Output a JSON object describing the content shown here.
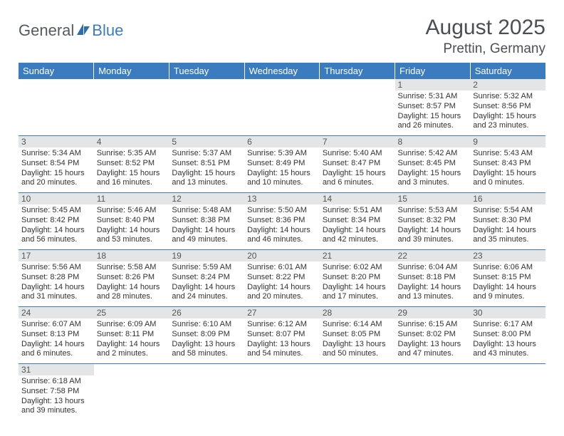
{
  "logo": {
    "text1": "General",
    "text2": "Blue"
  },
  "title": "August 2025",
  "location": "Prettin, Germany",
  "colors": {
    "header_bg": "#3b7bbf",
    "header_text": "#ffffff",
    "daynum_bg": "#e3e5e7",
    "cell_border": "#3b7bbf",
    "text": "#333333"
  },
  "day_headers": [
    "Sunday",
    "Monday",
    "Tuesday",
    "Wednesday",
    "Thursday",
    "Friday",
    "Saturday"
  ],
  "weeks": [
    [
      null,
      null,
      null,
      null,
      null,
      {
        "n": "1",
        "sr": "Sunrise: 5:31 AM",
        "ss": "Sunset: 8:57 PM",
        "d1": "Daylight: 15 hours",
        "d2": "and 26 minutes."
      },
      {
        "n": "2",
        "sr": "Sunrise: 5:32 AM",
        "ss": "Sunset: 8:56 PM",
        "d1": "Daylight: 15 hours",
        "d2": "and 23 minutes."
      }
    ],
    [
      {
        "n": "3",
        "sr": "Sunrise: 5:34 AM",
        "ss": "Sunset: 8:54 PM",
        "d1": "Daylight: 15 hours",
        "d2": "and 20 minutes."
      },
      {
        "n": "4",
        "sr": "Sunrise: 5:35 AM",
        "ss": "Sunset: 8:52 PM",
        "d1": "Daylight: 15 hours",
        "d2": "and 16 minutes."
      },
      {
        "n": "5",
        "sr": "Sunrise: 5:37 AM",
        "ss": "Sunset: 8:51 PM",
        "d1": "Daylight: 15 hours",
        "d2": "and 13 minutes."
      },
      {
        "n": "6",
        "sr": "Sunrise: 5:39 AM",
        "ss": "Sunset: 8:49 PM",
        "d1": "Daylight: 15 hours",
        "d2": "and 10 minutes."
      },
      {
        "n": "7",
        "sr": "Sunrise: 5:40 AM",
        "ss": "Sunset: 8:47 PM",
        "d1": "Daylight: 15 hours",
        "d2": "and 6 minutes."
      },
      {
        "n": "8",
        "sr": "Sunrise: 5:42 AM",
        "ss": "Sunset: 8:45 PM",
        "d1": "Daylight: 15 hours",
        "d2": "and 3 minutes."
      },
      {
        "n": "9",
        "sr": "Sunrise: 5:43 AM",
        "ss": "Sunset: 8:43 PM",
        "d1": "Daylight: 15 hours",
        "d2": "and 0 minutes."
      }
    ],
    [
      {
        "n": "10",
        "sr": "Sunrise: 5:45 AM",
        "ss": "Sunset: 8:42 PM",
        "d1": "Daylight: 14 hours",
        "d2": "and 56 minutes."
      },
      {
        "n": "11",
        "sr": "Sunrise: 5:46 AM",
        "ss": "Sunset: 8:40 PM",
        "d1": "Daylight: 14 hours",
        "d2": "and 53 minutes."
      },
      {
        "n": "12",
        "sr": "Sunrise: 5:48 AM",
        "ss": "Sunset: 8:38 PM",
        "d1": "Daylight: 14 hours",
        "d2": "and 49 minutes."
      },
      {
        "n": "13",
        "sr": "Sunrise: 5:50 AM",
        "ss": "Sunset: 8:36 PM",
        "d1": "Daylight: 14 hours",
        "d2": "and 46 minutes."
      },
      {
        "n": "14",
        "sr": "Sunrise: 5:51 AM",
        "ss": "Sunset: 8:34 PM",
        "d1": "Daylight: 14 hours",
        "d2": "and 42 minutes."
      },
      {
        "n": "15",
        "sr": "Sunrise: 5:53 AM",
        "ss": "Sunset: 8:32 PM",
        "d1": "Daylight: 14 hours",
        "d2": "and 39 minutes."
      },
      {
        "n": "16",
        "sr": "Sunrise: 5:54 AM",
        "ss": "Sunset: 8:30 PM",
        "d1": "Daylight: 14 hours",
        "d2": "and 35 minutes."
      }
    ],
    [
      {
        "n": "17",
        "sr": "Sunrise: 5:56 AM",
        "ss": "Sunset: 8:28 PM",
        "d1": "Daylight: 14 hours",
        "d2": "and 31 minutes."
      },
      {
        "n": "18",
        "sr": "Sunrise: 5:58 AM",
        "ss": "Sunset: 8:26 PM",
        "d1": "Daylight: 14 hours",
        "d2": "and 28 minutes."
      },
      {
        "n": "19",
        "sr": "Sunrise: 5:59 AM",
        "ss": "Sunset: 8:24 PM",
        "d1": "Daylight: 14 hours",
        "d2": "and 24 minutes."
      },
      {
        "n": "20",
        "sr": "Sunrise: 6:01 AM",
        "ss": "Sunset: 8:22 PM",
        "d1": "Daylight: 14 hours",
        "d2": "and 20 minutes."
      },
      {
        "n": "21",
        "sr": "Sunrise: 6:02 AM",
        "ss": "Sunset: 8:20 PM",
        "d1": "Daylight: 14 hours",
        "d2": "and 17 minutes."
      },
      {
        "n": "22",
        "sr": "Sunrise: 6:04 AM",
        "ss": "Sunset: 8:18 PM",
        "d1": "Daylight: 14 hours",
        "d2": "and 13 minutes."
      },
      {
        "n": "23",
        "sr": "Sunrise: 6:06 AM",
        "ss": "Sunset: 8:15 PM",
        "d1": "Daylight: 14 hours",
        "d2": "and 9 minutes."
      }
    ],
    [
      {
        "n": "24",
        "sr": "Sunrise: 6:07 AM",
        "ss": "Sunset: 8:13 PM",
        "d1": "Daylight: 14 hours",
        "d2": "and 6 minutes."
      },
      {
        "n": "25",
        "sr": "Sunrise: 6:09 AM",
        "ss": "Sunset: 8:11 PM",
        "d1": "Daylight: 14 hours",
        "d2": "and 2 minutes."
      },
      {
        "n": "26",
        "sr": "Sunrise: 6:10 AM",
        "ss": "Sunset: 8:09 PM",
        "d1": "Daylight: 13 hours",
        "d2": "and 58 minutes."
      },
      {
        "n": "27",
        "sr": "Sunrise: 6:12 AM",
        "ss": "Sunset: 8:07 PM",
        "d1": "Daylight: 13 hours",
        "d2": "and 54 minutes."
      },
      {
        "n": "28",
        "sr": "Sunrise: 6:14 AM",
        "ss": "Sunset: 8:05 PM",
        "d1": "Daylight: 13 hours",
        "d2": "and 50 minutes."
      },
      {
        "n": "29",
        "sr": "Sunrise: 6:15 AM",
        "ss": "Sunset: 8:02 PM",
        "d1": "Daylight: 13 hours",
        "d2": "and 47 minutes."
      },
      {
        "n": "30",
        "sr": "Sunrise: 6:17 AM",
        "ss": "Sunset: 8:00 PM",
        "d1": "Daylight: 13 hours",
        "d2": "and 43 minutes."
      }
    ],
    [
      {
        "n": "31",
        "sr": "Sunrise: 6:18 AM",
        "ss": "Sunset: 7:58 PM",
        "d1": "Daylight: 13 hours",
        "d2": "and 39 minutes."
      },
      null,
      null,
      null,
      null,
      null,
      null
    ]
  ]
}
